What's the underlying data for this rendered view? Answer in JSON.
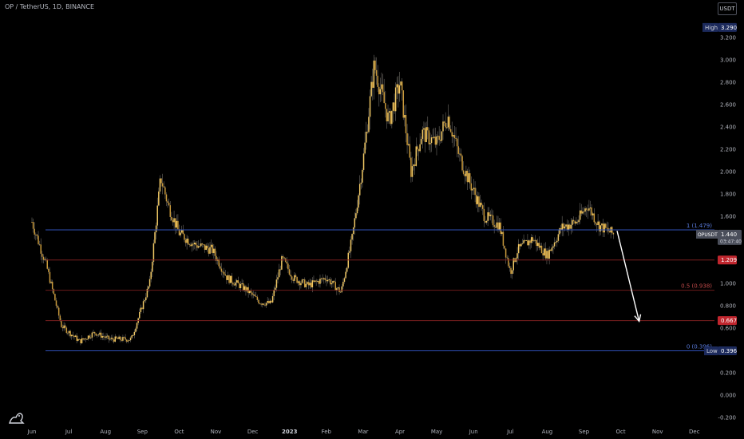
{
  "header": {
    "symbol_title": "OP / TetherUS, 1D, BINANCE",
    "currency_button": "USDT"
  },
  "colors": {
    "background": "#000000",
    "candle_up": "#f0c865",
    "candle_down": "#c99a3c",
    "fib_blue": "#2f4fb5",
    "fib_red": "#7a1f1f",
    "arrow": "#ffffff",
    "axis_text": "#b2b5be",
    "badge_red": "#c0262e",
    "badge_blue": "#1c2a5c",
    "badge_grey": "#4a4e5a"
  },
  "chart_data": {
    "type": "candlestick",
    "x_ticks": [
      "Jun",
      "Jul",
      "Aug",
      "Sep",
      "Oct",
      "Nov",
      "Dec",
      "2023",
      "Feb",
      "Mar",
      "Apr",
      "May",
      "Jun",
      "Jul",
      "Aug",
      "Sep",
      "Oct",
      "Nov",
      "Dec"
    ],
    "y_ticks": [
      "3.200",
      "3.000",
      "2.800",
      "2.600",
      "2.400",
      "2.200",
      "2.000",
      "1.800",
      "1.600",
      "1.400",
      "1.200",
      "1.000",
      "0.800",
      "0.600",
      "0.400",
      "0.200",
      "0.000",
      "-0.200"
    ],
    "y_tick_values": [
      3.2,
      3.0,
      2.8,
      2.6,
      2.4,
      2.2,
      2.0,
      1.8,
      1.6,
      1.4,
      1.2,
      1.0,
      0.8,
      0.6,
      0.4,
      0.2,
      0.0,
      -0.2
    ],
    "ylim": [
      -0.2,
      3.29
    ],
    "close_path": [
      [
        0,
        1.55
      ],
      [
        0.4,
        1.15
      ],
      [
        0.8,
        0.62
      ],
      [
        1.3,
        0.48
      ],
      [
        1.7,
        0.56
      ],
      [
        2.1,
        0.5
      ],
      [
        2.7,
        0.5
      ],
      [
        3.2,
        1.0
      ],
      [
        3.5,
        1.95
      ],
      [
        3.7,
        1.7
      ],
      [
        4.0,
        1.45
      ],
      [
        4.4,
        1.35
      ],
      [
        4.9,
        1.3
      ],
      [
        5.3,
        1.05
      ],
      [
        5.8,
        0.95
      ],
      [
        6.2,
        0.83
      ],
      [
        6.5,
        0.82
      ],
      [
        6.8,
        1.22
      ],
      [
        7.1,
        1.05
      ],
      [
        7.5,
        0.98
      ],
      [
        8.0,
        1.05
      ],
      [
        8.4,
        0.92
      ],
      [
        8.7,
        1.4
      ],
      [
        9.0,
        2.1
      ],
      [
        9.3,
        2.95
      ],
      [
        9.7,
        2.45
      ],
      [
        10.0,
        2.8
      ],
      [
        10.3,
        2.0
      ],
      [
        10.6,
        2.35
      ],
      [
        11.0,
        2.25
      ],
      [
        11.3,
        2.5
      ],
      [
        11.6,
        2.15
      ],
      [
        11.9,
        1.9
      ],
      [
        12.3,
        1.6
      ],
      [
        12.7,
        1.52
      ],
      [
        13.0,
        1.1
      ],
      [
        13.2,
        1.3
      ],
      [
        13.6,
        1.4
      ],
      [
        14.0,
        1.25
      ],
      [
        14.4,
        1.5
      ],
      [
        14.8,
        1.55
      ],
      [
        15.1,
        1.7
      ],
      [
        15.4,
        1.52
      ],
      [
        15.8,
        1.44
      ]
    ],
    "high_marker": {
      "label": "High",
      "value": 3.29,
      "value_text": "3.290"
    },
    "low_marker": {
      "label": "Low",
      "value": 0.396,
      "value_text": "0.396"
    },
    "fib_levels": [
      {
        "label": "1 (1.479)",
        "value": 1.479,
        "kind": "blue"
      },
      {
        "label": "",
        "value": 1.209,
        "kind": "red"
      },
      {
        "label": "0.5 (0.938)",
        "value": 0.938,
        "kind": "red"
      },
      {
        "label": "",
        "value": 0.667,
        "kind": "red"
      },
      {
        "label": "0 (0.396)",
        "value": 0.396,
        "kind": "blue"
      }
    ],
    "price_badges": [
      {
        "text": "1.209",
        "value": 1.209,
        "style": "red"
      },
      {
        "text": "0.667",
        "value": 0.667,
        "style": "red"
      }
    ],
    "current_price": {
      "symbol": "OPUSDT",
      "price": "1.440",
      "value": 1.44,
      "countdown": "03:47:40"
    },
    "projection_arrow": {
      "from_x": 15.9,
      "from_y": 1.47,
      "to_x": 16.5,
      "to_y": 0.66
    }
  }
}
